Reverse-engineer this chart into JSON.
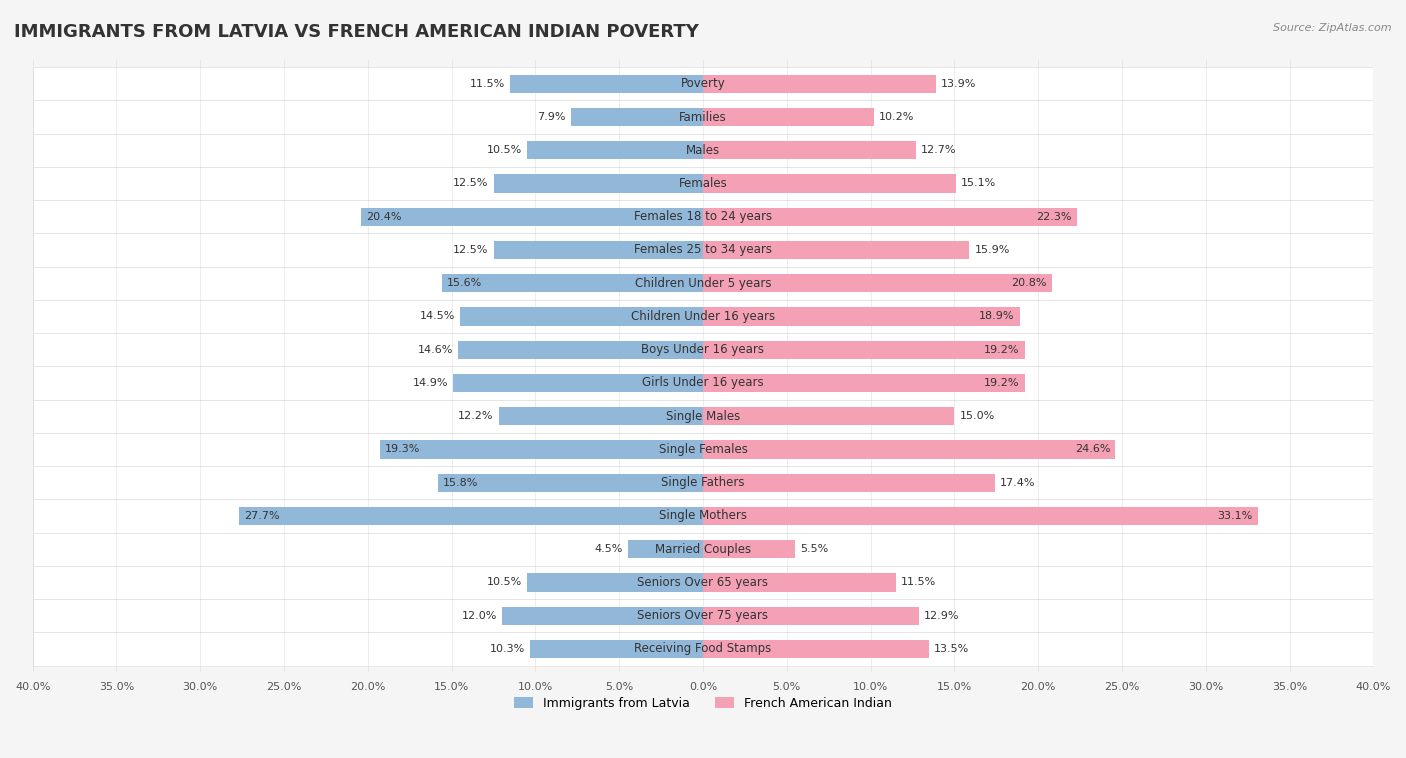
{
  "title": "IMMIGRANTS FROM LATVIA VS FRENCH AMERICAN INDIAN POVERTY",
  "source": "Source: ZipAtlas.com",
  "categories": [
    "Poverty",
    "Families",
    "Males",
    "Females",
    "Females 18 to 24 years",
    "Females 25 to 34 years",
    "Children Under 5 years",
    "Children Under 16 years",
    "Boys Under 16 years",
    "Girls Under 16 years",
    "Single Males",
    "Single Females",
    "Single Fathers",
    "Single Mothers",
    "Married Couples",
    "Seniors Over 65 years",
    "Seniors Over 75 years",
    "Receiving Food Stamps"
  ],
  "latvia_values": [
    11.5,
    7.9,
    10.5,
    12.5,
    20.4,
    12.5,
    15.6,
    14.5,
    14.6,
    14.9,
    12.2,
    19.3,
    15.8,
    27.7,
    4.5,
    10.5,
    12.0,
    10.3
  ],
  "french_values": [
    13.9,
    10.2,
    12.7,
    15.1,
    22.3,
    15.9,
    20.8,
    18.9,
    19.2,
    19.2,
    15.0,
    24.6,
    17.4,
    33.1,
    5.5,
    11.5,
    12.9,
    13.5
  ],
  "latvia_color": "#92b8d9",
  "french_color": "#f4a0b5",
  "background_color": "#f5f5f5",
  "bar_background": "#ffffff",
  "axis_limit": 40.0,
  "legend_labels": [
    "Immigrants from Latvia",
    "French American Indian"
  ],
  "title_fontsize": 13,
  "label_fontsize": 8.5,
  "value_fontsize": 8,
  "bar_height": 0.55
}
